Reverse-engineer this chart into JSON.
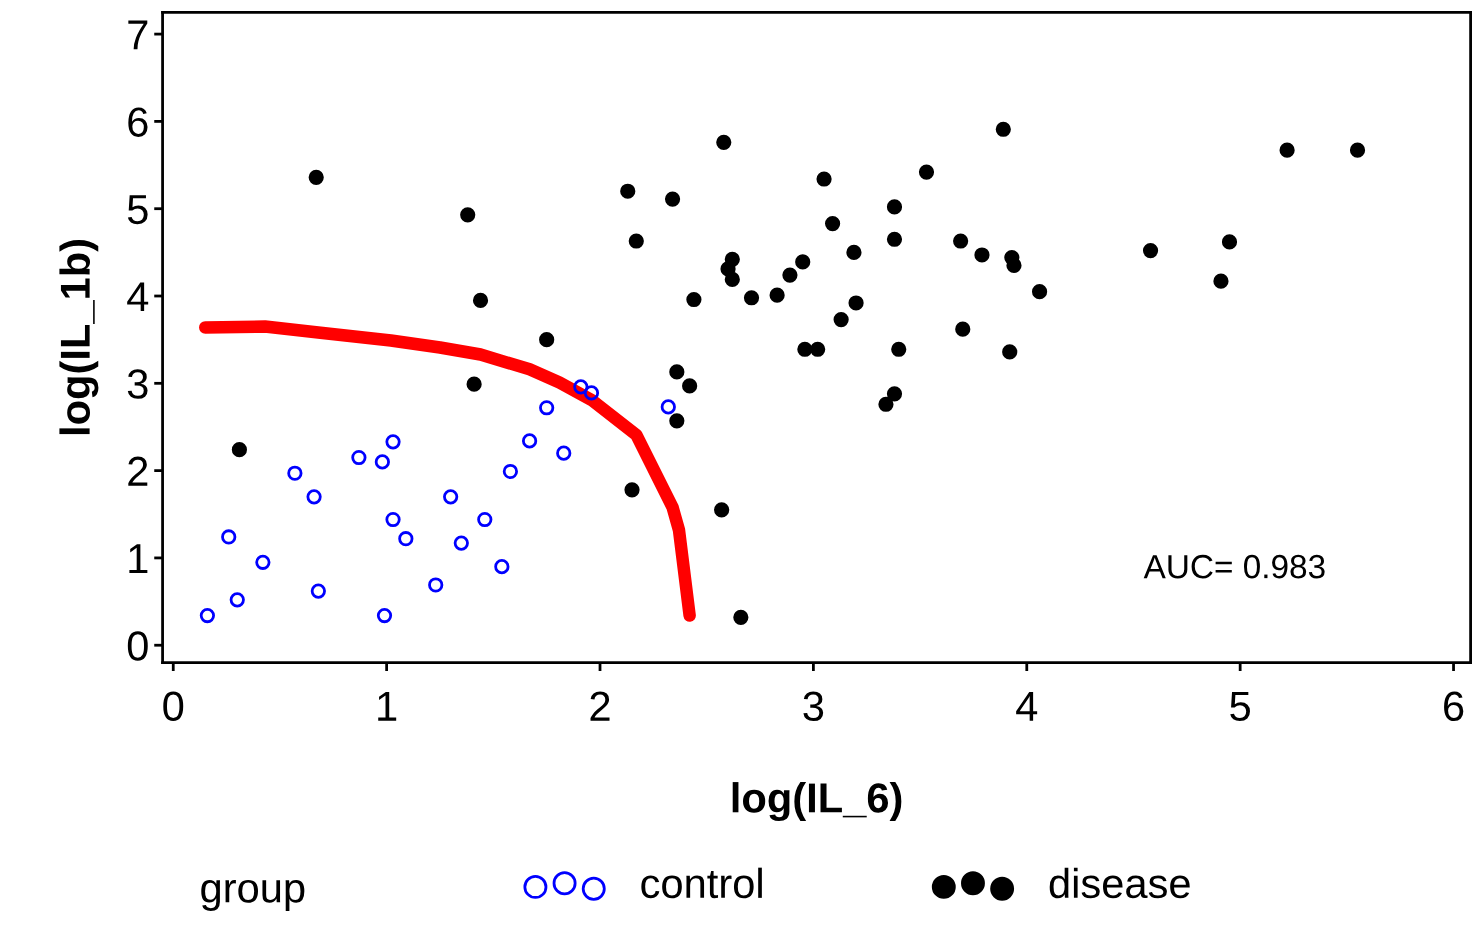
{
  "chart_data": {
    "type": "scatter",
    "xlabel": "log(IL_6)",
    "ylabel": "log(IL_1b)",
    "legend_title": "group",
    "legend": "bottom",
    "xlim": [
      -0.05,
      6.08
    ],
    "ylim": [
      -0.2,
      7.25
    ],
    "xticks": [
      0,
      1,
      2,
      3,
      4,
      5,
      6
    ],
    "yticks": [
      0,
      1,
      2,
      3,
      4,
      5,
      6,
      7
    ],
    "grid": false,
    "annotations": [
      "AUC= 0.983"
    ],
    "series": [
      {
        "name": "control",
        "color": "#0000ff",
        "marker": "circle",
        "x": [
          0.16,
          0.26,
          0.3,
          0.42,
          0.57,
          0.66,
          0.68,
          0.87,
          0.98,
          0.99,
          1.03,
          1.03,
          1.09,
          1.23,
          1.3,
          1.35,
          1.46,
          1.54,
          1.58,
          1.67,
          1.75,
          1.83,
          1.91,
          1.96,
          2.32
        ],
        "values": [
          0.34,
          1.24,
          0.52,
          0.95,
          1.97,
          1.7,
          0.62,
          2.15,
          2.1,
          0.34,
          2.33,
          1.44,
          1.22,
          0.69,
          1.7,
          1.17,
          1.44,
          0.9,
          1.99,
          2.34,
          2.72,
          2.2,
          2.96,
          2.89,
          2.73
        ]
      },
      {
        "name": "disease",
        "color": "#000000",
        "marker": "circle",
        "x": [
          0.31,
          0.67,
          1.38,
          1.44,
          1.41,
          1.75,
          2.13,
          2.17,
          2.15,
          2.34,
          2.36,
          2.42,
          2.36,
          2.44,
          2.58,
          2.6,
          2.62,
          2.62,
          2.57,
          2.66,
          2.71,
          2.83,
          2.89,
          2.95,
          2.96,
          3.02,
          3.05,
          3.09,
          3.13,
          3.19,
          3.2,
          3.34,
          3.38,
          3.38,
          3.38,
          3.4,
          3.53,
          3.69,
          3.7,
          3.79,
          3.89,
          3.92,
          3.93,
          3.94,
          4.06,
          4.58,
          4.95,
          4.91,
          5.22,
          5.55
        ],
        "values": [
          2.24,
          5.36,
          4.93,
          3.95,
          2.99,
          3.5,
          5.2,
          4.63,
          1.78,
          5.11,
          3.13,
          2.97,
          2.57,
          3.96,
          5.76,
          4.31,
          4.42,
          4.19,
          1.55,
          0.32,
          3.98,
          4.01,
          4.24,
          4.39,
          3.39,
          3.39,
          5.34,
          4.83,
          3.73,
          4.5,
          3.92,
          2.76,
          2.88,
          5.02,
          4.65,
          3.39,
          5.42,
          4.63,
          3.62,
          4.47,
          5.91,
          3.36,
          4.44,
          4.35,
          4.05,
          4.52,
          4.62,
          4.17,
          5.67,
          5.67
        ]
      },
      {
        "type": "line",
        "color": "#ff0000",
        "x": [
          0.15,
          0.43,
          0.69,
          1.02,
          1.25,
          1.44,
          1.67,
          1.81,
          1.96,
          2.17,
          2.34,
          2.37,
          2.42
        ],
        "values": [
          3.64,
          3.65,
          3.58,
          3.49,
          3.41,
          3.33,
          3.16,
          3.01,
          2.81,
          2.41,
          1.58,
          1.32,
          0.34
        ]
      }
    ]
  }
}
